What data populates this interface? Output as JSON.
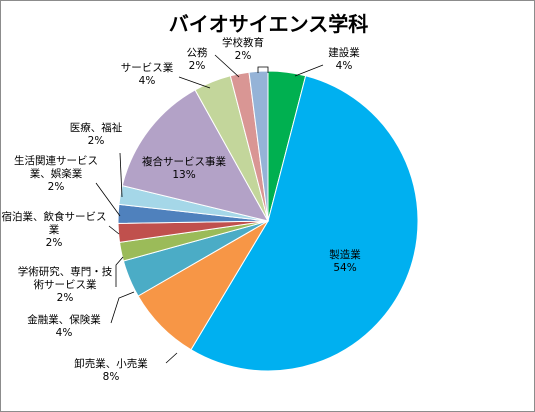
{
  "chart_data": {
    "type": "pie",
    "title": "バイオサイエンス学科",
    "legend": "none",
    "slices": [
      {
        "name": "建設業",
        "value": 4,
        "label": "4%",
        "color": "#00b050"
      },
      {
        "name": "製造業",
        "value": 54,
        "label": "54%",
        "color": "#00b0f0"
      },
      {
        "name": "卸売業、小売業",
        "value": 8,
        "label": "8%",
        "color": "#f79646"
      },
      {
        "name": "金融業、保険業",
        "value": 4,
        "label": "4%",
        "color": "#4bacc6"
      },
      {
        "name": "学術研究、専門・技術サービス業",
        "value": 2,
        "label": "2%",
        "color": "#9bbb59"
      },
      {
        "name": "宿泊業、飲食サービス業",
        "value": 2,
        "label": "2%",
        "color": "#c0504d"
      },
      {
        "name": "生活関連サービス業、娯楽業",
        "value": 2,
        "label": "2%",
        "color": "#4f81bd"
      },
      {
        "name": "医療、福祉",
        "value": 2,
        "label": "2%",
        "color": "#a5d7e8"
      },
      {
        "name": "複合サービス事業",
        "value": 13,
        "label": "13%",
        "color": "#b3a2c7"
      },
      {
        "name": "サービス業",
        "value": 4,
        "label": "4%",
        "color": "#c3d69b"
      },
      {
        "name": "公務",
        "value": 2,
        "label": "2%",
        "color": "#d99694"
      },
      {
        "name": "学校教育",
        "value": 2,
        "label": "2%",
        "color": "#95b3d7"
      }
    ]
  }
}
